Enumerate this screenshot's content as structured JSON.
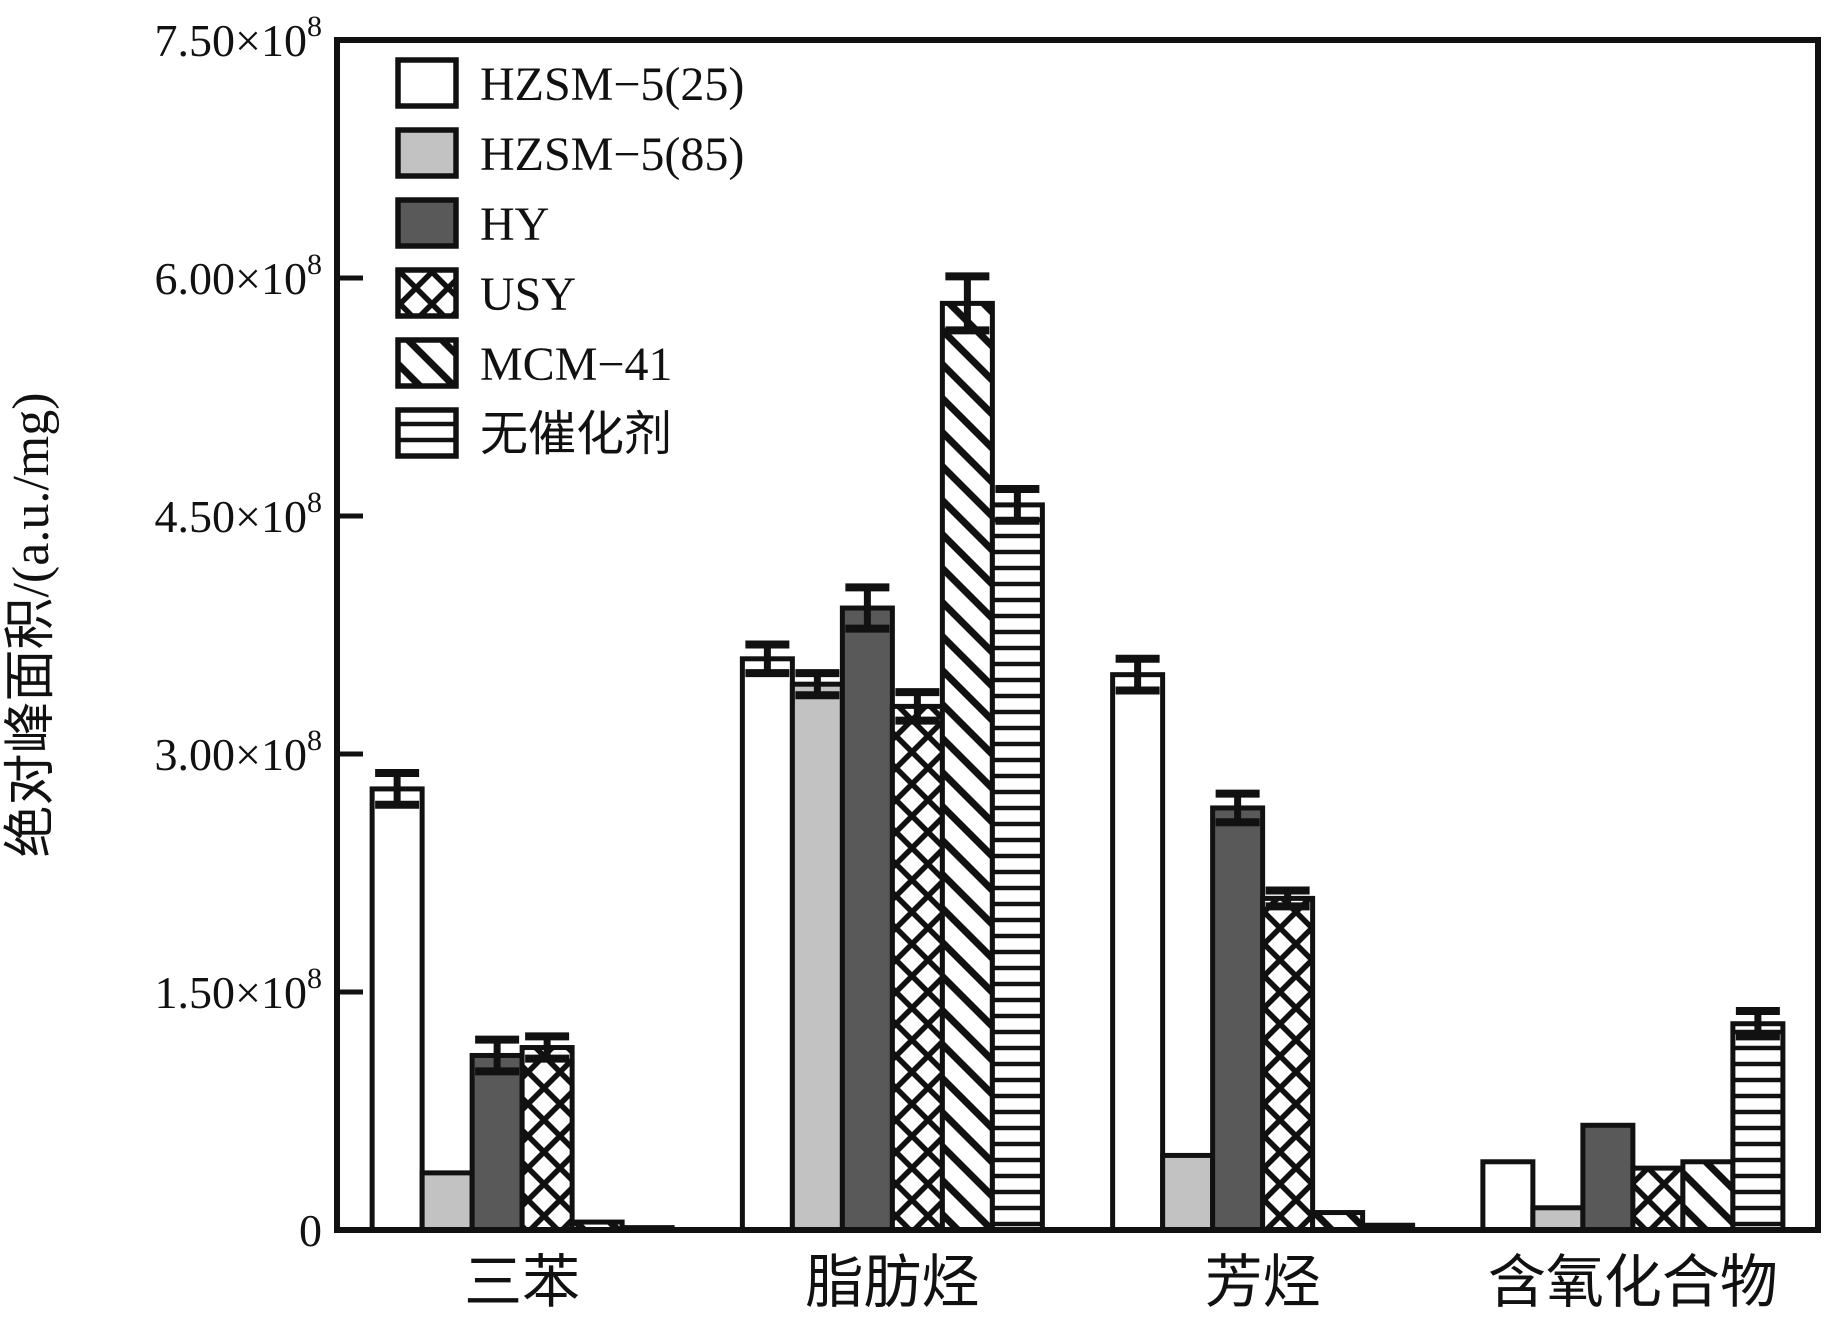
{
  "figure": {
    "background": "#ffffff",
    "frame_color": "#111111",
    "bar_edge_color": "#111111",
    "error_bar_color": "#111111"
  },
  "y_axis": {
    "title": "绝对峰面积/(a.u./mg)",
    "tick_labels": [
      {
        "base": "0",
        "exp": ""
      },
      {
        "base": "1.50×10",
        "exp": "8"
      },
      {
        "base": "3.00×10",
        "exp": "8"
      },
      {
        "base": "4.50×10",
        "exp": "8"
      },
      {
        "base": "6.00×10",
        "exp": "8"
      },
      {
        "base": "7.50×10",
        "exp": "8"
      }
    ],
    "tick_values": [
      0,
      150000000,
      300000000,
      450000000,
      600000000,
      750000000
    ]
  },
  "chart_data": {
    "type": "bar",
    "title": "",
    "xlabel": "",
    "ylabel": "绝对峰面积/(a.u./mg)",
    "ylim": [
      0,
      750000000
    ],
    "y_tick_step": 150000000,
    "grid": false,
    "legend_position": "top-left-inside",
    "error_bars": true,
    "categories": [
      "三苯",
      "脂肪烃",
      "芳烃",
      "含氧化合物"
    ],
    "series": [
      {
        "name": "HZSM−5(25)",
        "fill": {
          "type": "solid",
          "color": "#ffffff"
        },
        "values": [
          278000000,
          360000000,
          350000000,
          43000000
        ],
        "errors": [
          10000000,
          9000000,
          10000000,
          0
        ]
      },
      {
        "name": "HZSM−5(85)",
        "fill": {
          "type": "solid",
          "color": "#c2c2c2"
        },
        "values": [
          36000000,
          344000000,
          47000000,
          14000000
        ],
        "errors": [
          0,
          7000000,
          0,
          0
        ]
      },
      {
        "name": "HY",
        "fill": {
          "type": "solid",
          "color": "#595959"
        },
        "values": [
          110000000,
          392000000,
          266000000,
          66000000
        ],
        "errors": [
          10000000,
          13000000,
          9000000,
          0
        ]
      },
      {
        "name": "USY",
        "fill": {
          "type": "pattern",
          "pattern": "crosshatch"
        },
        "values": [
          115000000,
          330000000,
          209000000,
          39000000
        ],
        "errors": [
          7000000,
          9000000,
          5000000,
          0
        ]
      },
      {
        "name": "MCM−41",
        "fill": {
          "type": "pattern",
          "pattern": "diagonal"
        },
        "values": [
          5000000,
          584000000,
          11000000,
          43000000
        ],
        "errors": [
          0,
          17000000,
          0,
          0
        ]
      },
      {
        "name": "无催化剂",
        "fill": {
          "type": "pattern",
          "pattern": "hlines"
        },
        "values": [
          1500000,
          457000000,
          3000000,
          130000000
        ],
        "errors": [
          0,
          10000000,
          0,
          8000000
        ]
      }
    ]
  }
}
